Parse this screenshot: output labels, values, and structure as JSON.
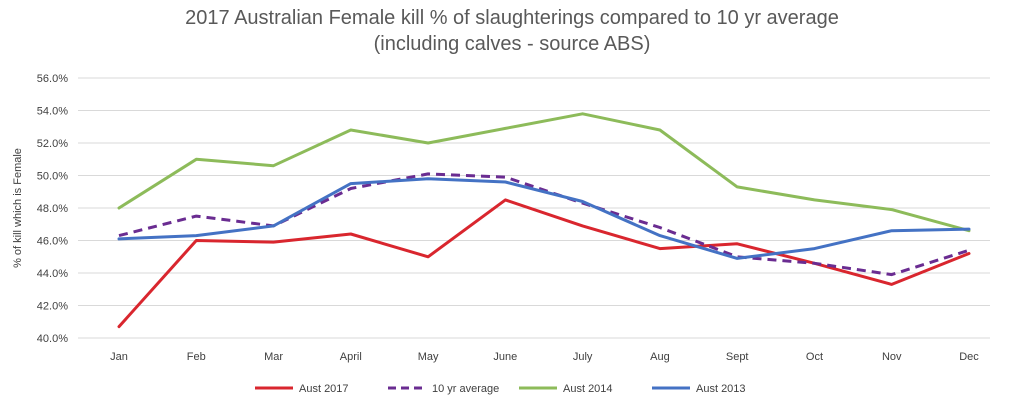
{
  "chart_data": {
    "type": "line",
    "title_lines": [
      "2017 Australian Female kill % of slaughterings compared to 10 yr average",
      "(including calves - source ABS)"
    ],
    "xlabel": "",
    "ylabel": "% of kill which is Female",
    "categories": [
      "Jan",
      "Feb",
      "Mar",
      "April",
      "May",
      "June",
      "July",
      "Aug",
      "Sept",
      "Oct",
      "Nov",
      "Dec"
    ],
    "ylim": [
      40.0,
      56.0
    ],
    "yticks": [
      40.0,
      42.0,
      44.0,
      46.0,
      48.0,
      50.0,
      52.0,
      54.0,
      56.0
    ],
    "ytick_labels": [
      "40.0%",
      "42.0%",
      "44.0%",
      "46.0%",
      "48.0%",
      "50.0%",
      "52.0%",
      "54.0%",
      "56.0%"
    ],
    "grid": "horizontal",
    "legend_position": "bottom",
    "series": [
      {
        "name": "Aust 2017",
        "color": "#d9262e",
        "dash": "solid",
        "values": [
          40.7,
          46.0,
          45.9,
          46.4,
          45.0,
          48.5,
          46.9,
          45.5,
          45.8,
          44.6,
          43.3,
          45.2
        ]
      },
      {
        "name": "10 yr average",
        "color": "#6a2c91",
        "dash": "dashed",
        "values": [
          46.3,
          47.5,
          46.9,
          49.2,
          50.1,
          49.9,
          48.3,
          46.8,
          45.0,
          44.6,
          43.9,
          45.4
        ]
      },
      {
        "name": "Aust 2014",
        "color": "#8dbb5a",
        "dash": "solid",
        "values": [
          48.0,
          51.0,
          50.6,
          52.8,
          52.0,
          52.9,
          53.8,
          52.8,
          49.3,
          48.5,
          47.9,
          46.6
        ]
      },
      {
        "name": "Aust 2013",
        "color": "#4472c4",
        "dash": "solid",
        "values": [
          46.1,
          46.3,
          46.9,
          49.5,
          49.8,
          49.6,
          48.4,
          46.3,
          44.9,
          45.5,
          46.6,
          46.7
        ]
      }
    ]
  }
}
